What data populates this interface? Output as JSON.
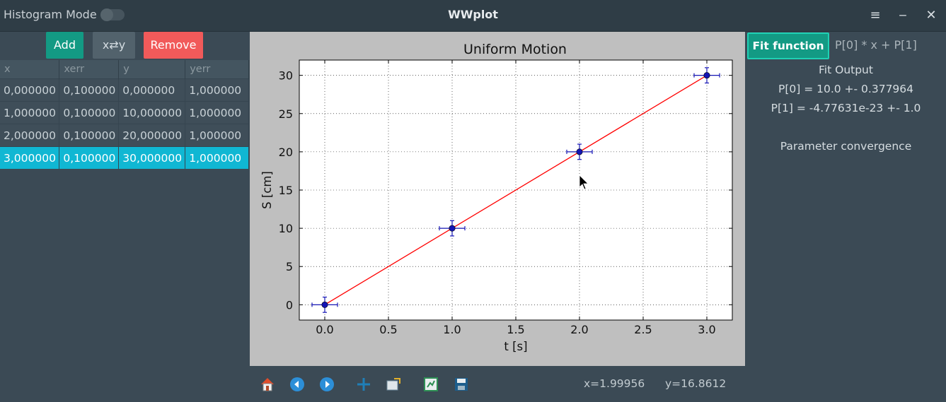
{
  "titlebar": {
    "histogram_label": "Histogram Mode",
    "app_title": "WWplot",
    "menu_icon": "≡",
    "minimize_icon": "‒",
    "close_icon": "✕"
  },
  "buttons": {
    "add": "Add",
    "swap": "x⇄y",
    "remove": "Remove"
  },
  "table": {
    "headers": [
      "x",
      "xerr",
      "y",
      "yerr"
    ],
    "rows": [
      [
        "0,000000",
        "0,100000",
        "0,000000",
        "1,000000"
      ],
      [
        "1,000000",
        "0,100000",
        "10,000000",
        "1,000000"
      ],
      [
        "2,000000",
        "0,100000",
        "20,000000",
        "1,000000"
      ],
      [
        "3,000000",
        "0,100000",
        "30,000000",
        "1,000000"
      ]
    ],
    "selected_row": 3
  },
  "chart_data": {
    "type": "scatter",
    "title": "Uniform Motion",
    "xlabel": "t [s]",
    "ylabel": "S [cm]",
    "xlim": [
      -0.2,
      3.2
    ],
    "ylim": [
      -2,
      32
    ],
    "xticks": [
      "0.0",
      "0.5",
      "1.0",
      "1.5",
      "2.0",
      "2.5",
      "3.0"
    ],
    "yticks": [
      "0",
      "5",
      "10",
      "15",
      "20",
      "25",
      "30"
    ],
    "grid": true,
    "points": [
      {
        "x": 0,
        "y": 0,
        "xerr": 0.1,
        "yerr": 1
      },
      {
        "x": 1,
        "y": 10,
        "xerr": 0.1,
        "yerr": 1
      },
      {
        "x": 2,
        "y": 20,
        "xerr": 0.1,
        "yerr": 1
      },
      {
        "x": 3,
        "y": 30,
        "xerr": 0.1,
        "yerr": 1
      }
    ],
    "fit_line": [
      [
        0,
        0
      ],
      [
        3,
        30
      ]
    ],
    "colors": {
      "points": "#1414b4",
      "fit": "#ff0000"
    }
  },
  "toolbar": {
    "x_readout": "x=1.99956",
    "y_readout": "y=16.8612"
  },
  "fit": {
    "button_label": "Fit function",
    "function": "P[0] * x + P[1]",
    "output_title": "Fit Output",
    "p0": "P[0] = 10.0 +- 0.377964",
    "p1": "P[1] = -4.77631e-23 +- 1.0",
    "convergence": "Parameter convergence"
  }
}
